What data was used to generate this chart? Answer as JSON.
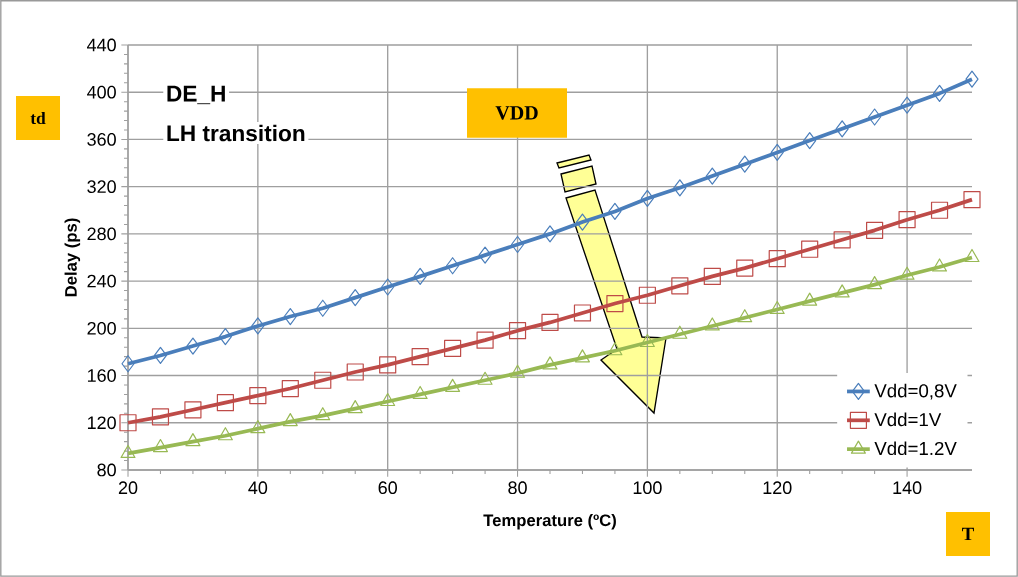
{
  "chart_data": {
    "type": "line",
    "xlabel": "Temperature (ºC)",
    "ylabel": "Delay (ps)",
    "annotations": [
      "DE_H",
      "LH transition",
      "td",
      "VDD",
      "T"
    ],
    "x": [
      20,
      25,
      30,
      35,
      40,
      45,
      50,
      55,
      60,
      65,
      70,
      75,
      80,
      85,
      90,
      95,
      100,
      105,
      110,
      115,
      120,
      125,
      130,
      135,
      140,
      145,
      150
    ],
    "series": [
      {
        "name": "Vdd=0,8V",
        "color": "#4a7ebb",
        "marker": "diamond",
        "values": [
          170,
          177,
          185,
          193,
          202,
          210,
          217,
          226,
          235,
          244,
          253,
          262,
          271,
          280,
          290,
          299,
          310,
          319,
          329,
          339,
          349,
          359,
          369,
          379,
          389,
          399,
          411
        ]
      },
      {
        "name": "Vdd=1V",
        "color": "#be4b48",
        "marker": "square",
        "values": [
          120,
          125,
          131,
          137,
          143,
          149,
          156,
          163,
          169,
          176,
          183,
          190,
          198,
          205,
          213,
          221,
          228,
          236,
          244,
          251,
          259,
          267,
          275,
          283,
          292,
          300,
          309
        ]
      },
      {
        "name": "Vdd=1.2V",
        "color": "#98b954",
        "marker": "triangle",
        "values": [
          94,
          99,
          104,
          109,
          115,
          121,
          126,
          132,
          138,
          144,
          150,
          156,
          162,
          169,
          175,
          181,
          188,
          195,
          202,
          209,
          216,
          223,
          230,
          237,
          245,
          252,
          260
        ]
      }
    ],
    "xlim": [
      20,
      150
    ],
    "xticks": [
      20,
      40,
      60,
      80,
      100,
      120,
      140
    ],
    "ylim": [
      80,
      440
    ],
    "yticks": [
      80,
      120,
      160,
      200,
      240,
      280,
      320,
      360,
      400,
      440
    ],
    "grid": true,
    "legend": "bottom right",
    "line_style": "solid"
  }
}
